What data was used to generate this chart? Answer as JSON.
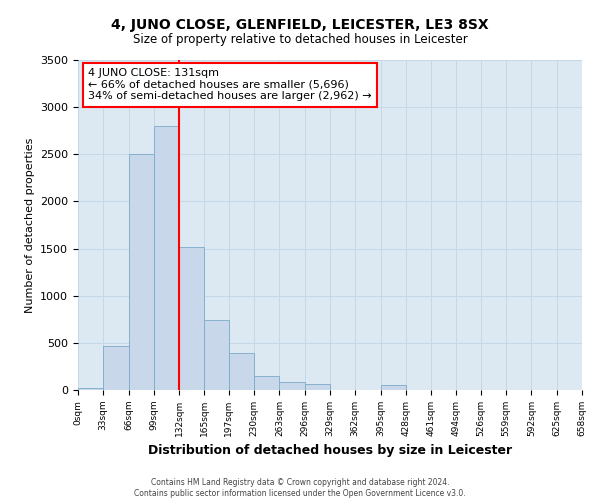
{
  "title": "4, JUNO CLOSE, GLENFIELD, LEICESTER, LE3 8SX",
  "subtitle": "Size of property relative to detached houses in Leicester",
  "xlabel": "Distribution of detached houses by size in Leicester",
  "ylabel": "Number of detached properties",
  "bin_edges": [
    0,
    33,
    66,
    99,
    132,
    165,
    197,
    230,
    263,
    296,
    329,
    362,
    395,
    428,
    461,
    494,
    526,
    559,
    592,
    625,
    658
  ],
  "bin_labels": [
    "0sqm",
    "33sqm",
    "66sqm",
    "99sqm",
    "132sqm",
    "165sqm",
    "197sqm",
    "230sqm",
    "263sqm",
    "296sqm",
    "329sqm",
    "362sqm",
    "395sqm",
    "428sqm",
    "461sqm",
    "494sqm",
    "526sqm",
    "559sqm",
    "592sqm",
    "625sqm",
    "658sqm"
  ],
  "bar_heights": [
    20,
    470,
    2500,
    2800,
    1520,
    740,
    390,
    150,
    80,
    60,
    0,
    0,
    50,
    0,
    0,
    0,
    0,
    0,
    0,
    0
  ],
  "bar_color": "#c8d8ea",
  "bar_edge_color": "#7aaac8",
  "property_line_x": 132,
  "property_line_color": "red",
  "ylim": [
    0,
    3500
  ],
  "yticks": [
    0,
    500,
    1000,
    1500,
    2000,
    2500,
    3000,
    3500
  ],
  "annotation_title": "4 JUNO CLOSE: 131sqm",
  "annotation_line1": "← 66% of detached houses are smaller (5,696)",
  "annotation_line2": "34% of semi-detached houses are larger (2,962) →",
  "annotation_box_color": "red",
  "grid_color": "#c5d8e8",
  "bg_color": "#dce8f2",
  "footer1": "Contains HM Land Registry data © Crown copyright and database right 2024.",
  "footer2": "Contains public sector information licensed under the Open Government Licence v3.0."
}
